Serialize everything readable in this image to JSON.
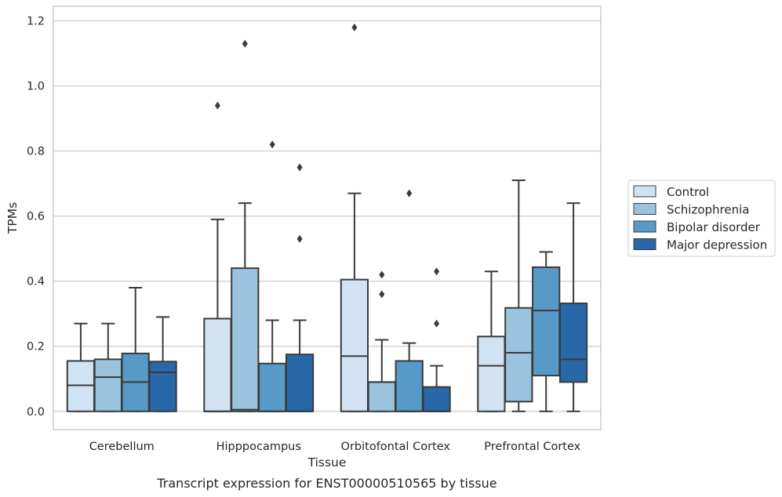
{
  "caption": "Transcript expression for ENST00000510565 by tissue",
  "chart_data": {
    "type": "box",
    "xlabel": "Tissue",
    "ylabel": "TPMs",
    "ylim": [
      -0.056,
      1.245
    ],
    "yticks": [
      0.0,
      0.2,
      0.4,
      0.6,
      0.8,
      1.0,
      1.2
    ],
    "ytick_labels": [
      "0.0",
      "0.2",
      "0.4",
      "0.6",
      "0.8",
      "1.0",
      "1.2"
    ],
    "categories": [
      "Cerebellum",
      "Hipppocampus",
      "Orbitofontal Cortex",
      "Prefrontal Cortex"
    ],
    "grid": "horizontal",
    "legend_position": "right",
    "series": [
      {
        "name": "Control",
        "color": "#d1e2f2",
        "boxes": [
          {
            "whislo": 0.0,
            "q1": 0.0,
            "med": 0.08,
            "q3": 0.155,
            "whishi": 0.27,
            "fliers": []
          },
          {
            "whislo": 0.0,
            "q1": 0.0,
            "med": 0.0,
            "q3": 0.285,
            "whishi": 0.59,
            "fliers": [
              0.94
            ]
          },
          {
            "whislo": 0.0,
            "q1": 0.0,
            "med": 0.17,
            "q3": 0.405,
            "whishi": 0.67,
            "fliers": [
              1.18
            ]
          },
          {
            "whislo": 0.0,
            "q1": 0.0,
            "med": 0.14,
            "q3": 0.23,
            "whishi": 0.43,
            "fliers": []
          }
        ]
      },
      {
        "name": "Schizophrenia",
        "color": "#9ac4de",
        "boxes": [
          {
            "whislo": 0.0,
            "q1": 0.0,
            "med": 0.105,
            "q3": 0.16,
            "whishi": 0.27,
            "fliers": []
          },
          {
            "whislo": 0.0,
            "q1": 0.0,
            "med": 0.005,
            "q3": 0.44,
            "whishi": 0.64,
            "fliers": [
              1.13
            ]
          },
          {
            "whislo": 0.0,
            "q1": 0.0,
            "med": 0.09,
            "q3": 0.09,
            "whishi": 0.22,
            "fliers": [
              0.36,
              0.42
            ]
          },
          {
            "whislo": 0.0,
            "q1": 0.03,
            "med": 0.18,
            "q3": 0.318,
            "whishi": 0.71,
            "fliers": []
          }
        ]
      },
      {
        "name": "Bipolar disorder",
        "color": "#5799c7",
        "boxes": [
          {
            "whislo": 0.0,
            "q1": 0.0,
            "med": 0.09,
            "q3": 0.178,
            "whishi": 0.38,
            "fliers": []
          },
          {
            "whislo": 0.0,
            "q1": 0.0,
            "med": 0.0,
            "q3": 0.147,
            "whishi": 0.28,
            "fliers": [
              0.82
            ]
          },
          {
            "whislo": 0.0,
            "q1": 0.0,
            "med": 0.0,
            "q3": 0.155,
            "whishi": 0.21,
            "fliers": [
              0.67
            ]
          },
          {
            "whislo": 0.0,
            "q1": 0.11,
            "med": 0.31,
            "q3": 0.443,
            "whishi": 0.49,
            "fliers": []
          }
        ]
      },
      {
        "name": "Major depression",
        "color": "#2868a8",
        "boxes": [
          {
            "whislo": 0.0,
            "q1": 0.0,
            "med": 0.12,
            "q3": 0.153,
            "whishi": 0.29,
            "fliers": []
          },
          {
            "whislo": 0.0,
            "q1": 0.0,
            "med": 0.0,
            "q3": 0.175,
            "whishi": 0.28,
            "fliers": [
              0.53,
              0.75
            ]
          },
          {
            "whislo": 0.0,
            "q1": 0.0,
            "med": 0.0,
            "q3": 0.075,
            "whishi": 0.14,
            "fliers": [
              0.27,
              0.43
            ]
          },
          {
            "whislo": 0.0,
            "q1": 0.09,
            "med": 0.16,
            "q3": 0.332,
            "whishi": 0.64,
            "fliers": []
          }
        ]
      }
    ]
  }
}
